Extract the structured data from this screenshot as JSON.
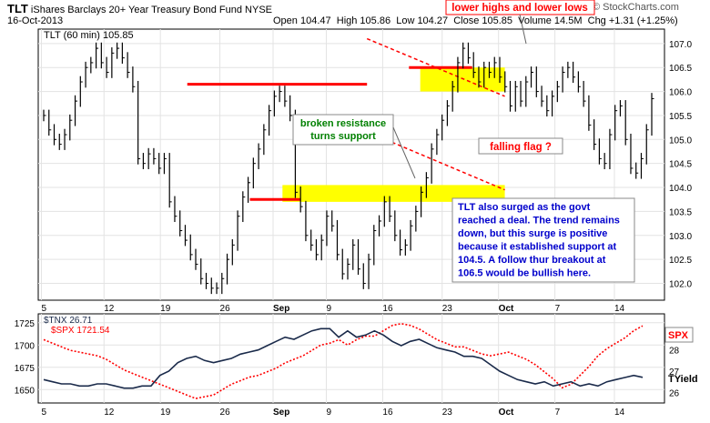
{
  "header": {
    "symbol": "TLT",
    "name": "iShares Barclays 20+ Year Treasury Bond Fund",
    "exchange": "NYSE",
    "date": "16-Oct-2013",
    "open": "Open 104.47",
    "high": "High 105.86",
    "low": "Low 104.27",
    "close": "Close 105.85",
    "volume": "Volume 14.5M",
    "change": "Chg +1.31 (+1.25%)",
    "watermark": "© StockCharts.com"
  },
  "colors": {
    "price": "#000000",
    "resistance": "#ff0000",
    "zone": "#ffff00",
    "tnx": "#1a2a4a",
    "spx": "#ff0000",
    "annotation_text": "#0000cc",
    "callout_green": "#008000"
  },
  "chart_data": [
    {
      "type": "line",
      "title": "TLT (60 min) 105.85",
      "legend": "TLT (60 min) 105.85",
      "x_ticks": [
        "5",
        "12",
        "19",
        "26",
        "Sep",
        "9",
        "16",
        "23",
        "Oct",
        "7",
        "14"
      ],
      "y_ticks": [
        102.0,
        102.5,
        103.0,
        103.5,
        104.0,
        104.5,
        105.0,
        105.5,
        106.0,
        106.5,
        107.0
      ],
      "ylim": [
        101.65,
        107.3
      ],
      "grid": true,
      "series": [
        {
          "name": "TLT (60 min)",
          "values": [
            105.5,
            105.2,
            105.0,
            104.9,
            105.1,
            105.4,
            105.8,
            106.2,
            106.5,
            106.6,
            106.9,
            106.6,
            106.4,
            106.8,
            106.9,
            106.7,
            106.4,
            106.1,
            104.6,
            104.5,
            104.7,
            104.6,
            104.4,
            104.6,
            103.7,
            103.4,
            103.1,
            102.9,
            102.6,
            102.4,
            102.1,
            102.0,
            101.9,
            101.9,
            102.1,
            102.5,
            102.8,
            103.4,
            103.8,
            104.1,
            104.5,
            104.8,
            105.2,
            105.6,
            105.9,
            106.0,
            105.8,
            105.5,
            103.9,
            103.6,
            103.0,
            102.8,
            102.6,
            102.9,
            103.4,
            103.2,
            102.6,
            102.2,
            102.4,
            102.8,
            102.3,
            102.0,
            102.5,
            103.1,
            103.3,
            103.7,
            103.4,
            103.0,
            102.7,
            102.8,
            103.2,
            103.5,
            103.9,
            104.2,
            104.8,
            105.1,
            105.4,
            105.7,
            106.1,
            106.6,
            106.9,
            106.7,
            106.4,
            106.2,
            106.5,
            106.4,
            106.6,
            106.3,
            106.1,
            105.7,
            106.1,
            105.8,
            106.2,
            106.4,
            106.0,
            105.8,
            105.6,
            105.9,
            106.1,
            106.4,
            106.5,
            106.3,
            106.1,
            105.8,
            105.3,
            104.9,
            104.6,
            104.5,
            105.1,
            105.6,
            105.7,
            105.0,
            104.4,
            104.3,
            104.6,
            105.2,
            105.85
          ]
        },
        {
          "name": "resistance",
          "segments": [
            {
              "x": [
                0.238,
                0.525
              ],
              "y": [
                106.15,
                106.15
              ]
            },
            {
              "x": [
                0.338,
                0.418
              ],
              "y": [
                103.75,
                103.75
              ]
            },
            {
              "x": [
                0.592,
                0.693
              ],
              "y": [
                106.5,
                106.5
              ]
            }
          ]
        },
        {
          "name": "falling flag",
          "segments": [
            {
              "x": [
                0.525,
                0.745
              ],
              "y": [
                107.1,
                105.9
              ]
            },
            {
              "x": [
                0.518,
                0.745
              ],
              "y": [
                105.2,
                103.95
              ]
            }
          ]
        }
      ],
      "zones": [
        {
          "x": [
            0.39,
            0.745
          ],
          "y": [
            103.7,
            104.05
          ]
        },
        {
          "x": [
            0.61,
            0.745
          ],
          "y": [
            106.0,
            106.5
          ]
        }
      ],
      "annotations": [
        {
          "text": "lower highs and lower lows",
          "x": 0.525,
          "y": 107.3
        },
        {
          "text": "broken resistance turns support",
          "lines": [
            "broken resistance",
            "turns support"
          ],
          "x": 0.435,
          "y": 105.2
        },
        {
          "text": "falling flag ?",
          "x": 0.552,
          "y": 104.95
        },
        {
          "text": "TLT also surged as the govt reached a deal. The trend remains down, but this surge is positive because it established support at 104.5. A follow thur breakout at 106.5 would be bullish here.",
          "lines": [
            "TLT also surged as the govt",
            "reached a deal. The trend remains",
            "down, but this surge is positive",
            "because it established support at",
            "104.5. A follow thur breakout at",
            "106.5 would be bullish here."
          ],
          "x": 0.478,
          "y": 103.5
        }
      ]
    },
    {
      "type": "line",
      "legend_tnx": "$TNX 26.71",
      "legend_spx": "$SPX 1721.54",
      "x_ticks": [
        "5",
        "12",
        "19",
        "26",
        "Sep",
        "9",
        "16",
        "23",
        "Oct",
        "7",
        "14"
      ],
      "y_ticks_left": [
        1650,
        1675,
        1700,
        1725
      ],
      "y_ticks_right": [
        26,
        27,
        28
      ],
      "ylim_left": [
        1635,
        1735
      ],
      "ylim_right": [
        25.5,
        29.7
      ],
      "right_labels": {
        "spx": "SPX",
        "tnx": "TYield"
      },
      "series": [
        {
          "name": "$TNX",
          "values": [
            26.6,
            26.5,
            26.4,
            26.4,
            26.3,
            26.3,
            26.4,
            26.4,
            26.3,
            26.2,
            26.2,
            26.3,
            26.3,
            26.8,
            27.0,
            27.4,
            27.6,
            27.7,
            27.5,
            27.4,
            27.5,
            27.6,
            27.8,
            27.9,
            28.0,
            28.2,
            28.4,
            28.6,
            28.5,
            28.7,
            28.9,
            29.0,
            29.0,
            28.6,
            28.9,
            28.6,
            28.7,
            28.9,
            28.7,
            28.4,
            28.2,
            28.4,
            28.5,
            28.3,
            28.1,
            28.0,
            27.9,
            27.7,
            27.7,
            27.6,
            27.3,
            27.0,
            26.8,
            26.6,
            26.5,
            26.4,
            26.5,
            26.3,
            26.4,
            26.5,
            26.3,
            26.4,
            26.3,
            26.5,
            26.6,
            26.7,
            26.8,
            26.71
          ]
        },
        {
          "name": "$SPX",
          "values": [
            1706,
            1702,
            1698,
            1694,
            1692,
            1690,
            1688,
            1684,
            1678,
            1672,
            1668,
            1664,
            1660,
            1656,
            1652,
            1648,
            1644,
            1640,
            1642,
            1644,
            1650,
            1656,
            1660,
            1664,
            1666,
            1670,
            1674,
            1680,
            1684,
            1688,
            1694,
            1700,
            1702,
            1706,
            1700,
            1706,
            1710,
            1710,
            1716,
            1722,
            1724,
            1722,
            1718,
            1712,
            1706,
            1702,
            1698,
            1698,
            1694,
            1690,
            1688,
            1690,
            1692,
            1688,
            1684,
            1678,
            1670,
            1662,
            1652,
            1656,
            1666,
            1676,
            1688,
            1696,
            1702,
            1708,
            1716,
            1721.54
          ]
        }
      ]
    }
  ]
}
